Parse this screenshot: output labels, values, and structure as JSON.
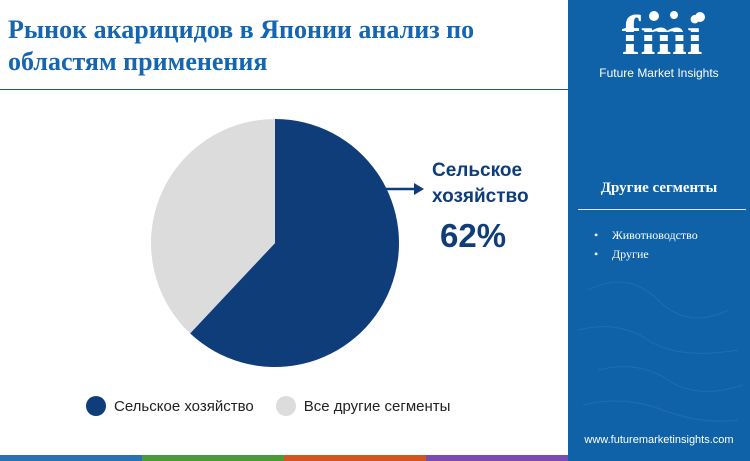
{
  "title": "Рынок акарицидов в Японии анализ по областям применения",
  "colors": {
    "primary": "#0f3d7a",
    "secondary": "#dcdcdc",
    "title": "#1565b0",
    "sidebar": "#0f62a8",
    "stripes": [
      "#2c6fb3",
      "#4a9a3a",
      "#d4541f",
      "#7a4bb0"
    ]
  },
  "callout": {
    "label": "Сельское хозяйство",
    "value": "62%"
  },
  "sidebar": {
    "logo_text": "fmi",
    "brand": "Future Market Insights",
    "other_segments_title": "Другие сегменты",
    "other_segments": [
      "Животноводство",
      "Другие"
    ],
    "url": "www.futuremarketinsights.com"
  },
  "chart_data": {
    "type": "pie",
    "title": "Рынок акарицидов в Японии анализ по областям применения",
    "slices": [
      {
        "label": "Сельское хозяйство",
        "value": 62,
        "color": "#0f3d7a"
      },
      {
        "label": "Все другие сегменты",
        "value": 38,
        "color": "#dcdcdc"
      }
    ],
    "start_angle_deg": 0,
    "direction": "clockwise",
    "legend": [
      "Сельское хозяйство",
      "Все другие сегменты"
    ],
    "legend_position": "bottom"
  }
}
